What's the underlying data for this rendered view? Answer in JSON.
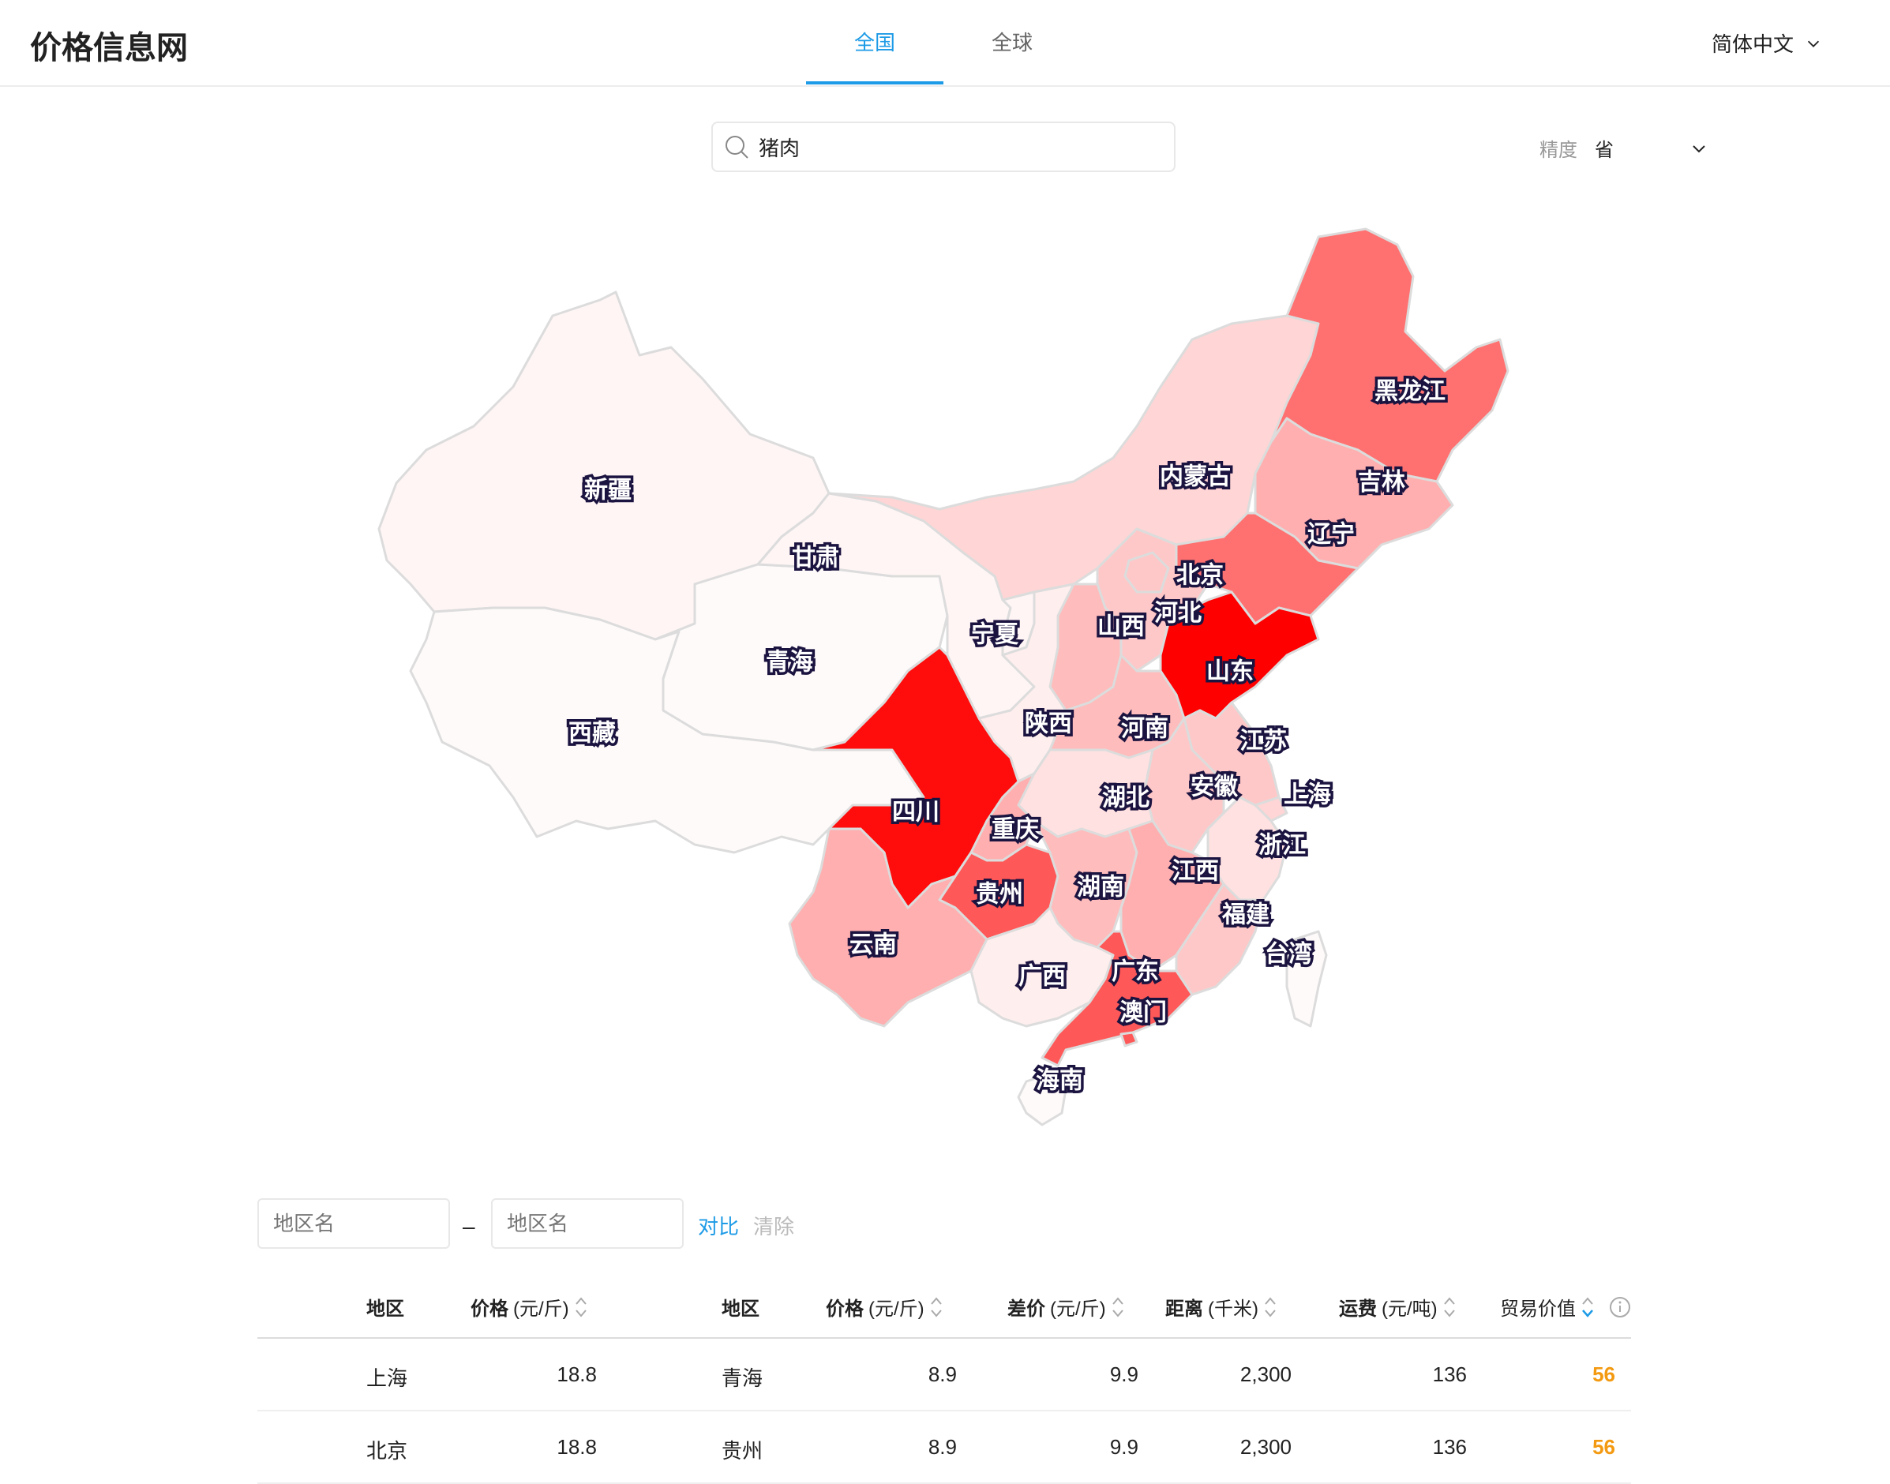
{
  "header": {
    "logo": "价格信息网",
    "tabs": [
      {
        "label": "全国",
        "active": true
      },
      {
        "label": "全球",
        "active": false
      }
    ],
    "language": "简体中文"
  },
  "search": {
    "value": "猪肉"
  },
  "precision": {
    "label": "精度",
    "value": "省"
  },
  "map": {
    "provinces": [
      {
        "name": "新疆",
        "level": 0.02
      },
      {
        "name": "西藏",
        "level": 0.0
      },
      {
        "name": "青海",
        "level": 0.0
      },
      {
        "name": "甘肃",
        "level": 0.02
      },
      {
        "name": "内蒙古",
        "level": 0.15
      },
      {
        "name": "黑龙江",
        "level": 0.55
      },
      {
        "name": "吉林",
        "level": 0.3
      },
      {
        "name": "辽宁",
        "level": 0.55
      },
      {
        "name": "北京",
        "level": 0.2
      },
      {
        "name": "河北",
        "level": 0.2
      },
      {
        "name": "山西",
        "level": 0.25
      },
      {
        "name": "宁夏",
        "level": 0.02
      },
      {
        "name": "陕西",
        "level": 0.05
      },
      {
        "name": "河南",
        "level": 0.25
      },
      {
        "name": "山东",
        "level": 1.0
      },
      {
        "name": "江苏",
        "level": 0.2
      },
      {
        "name": "安徽",
        "level": 0.2
      },
      {
        "name": "上海",
        "level": 0.15
      },
      {
        "name": "湖北",
        "level": 0.1
      },
      {
        "name": "四川",
        "level": 0.95
      },
      {
        "name": "重庆",
        "level": 0.3
      },
      {
        "name": "浙江",
        "level": 0.1
      },
      {
        "name": "贵州",
        "level": 0.65
      },
      {
        "name": "湖南",
        "level": 0.25
      },
      {
        "name": "江西",
        "level": 0.3
      },
      {
        "name": "福建",
        "level": 0.2
      },
      {
        "name": "云南",
        "level": 0.3
      },
      {
        "name": "广西",
        "level": 0.05
      },
      {
        "name": "广东",
        "level": 0.65
      },
      {
        "name": "澳门",
        "level": 0.65
      },
      {
        "name": "台湾",
        "level": 0.0
      },
      {
        "name": "海南",
        "level": 0.0
      }
    ]
  },
  "compare": {
    "placeholder_a": "地区名",
    "placeholder_b": "地区名",
    "separator": "–",
    "compare_label": "对比",
    "clear_label": "清除"
  },
  "table": {
    "headers": {
      "region_a": "地区",
      "price_a": {
        "name": "价格",
        "unit": "(元/斤)"
      },
      "region_b": "地区",
      "price_b": {
        "name": "价格",
        "unit": "(元/斤)"
      },
      "diff": {
        "name": "差价",
        "unit": "(元/斤)"
      },
      "distance": {
        "name": "距离",
        "unit": "(千米)"
      },
      "freight": {
        "name": "运费",
        "unit": "(元/吨)"
      },
      "trade_value": "贸易价值"
    },
    "rows": [
      {
        "region_a": "上海",
        "price_a": "18.8",
        "region_b": "青海",
        "price_b": "8.9",
        "diff": "9.9",
        "distance": "2,300",
        "freight": "136",
        "trade_value": "56"
      },
      {
        "region_a": "北京",
        "price_a": "18.8",
        "region_b": "贵州",
        "price_b": "8.9",
        "diff": "9.9",
        "distance": "2,300",
        "freight": "136",
        "trade_value": "56"
      }
    ]
  },
  "colors": {
    "accent": "#1e9be6",
    "highlight": "#f39a12",
    "map_max": "#ff0000",
    "map_min": "#ffffff"
  }
}
